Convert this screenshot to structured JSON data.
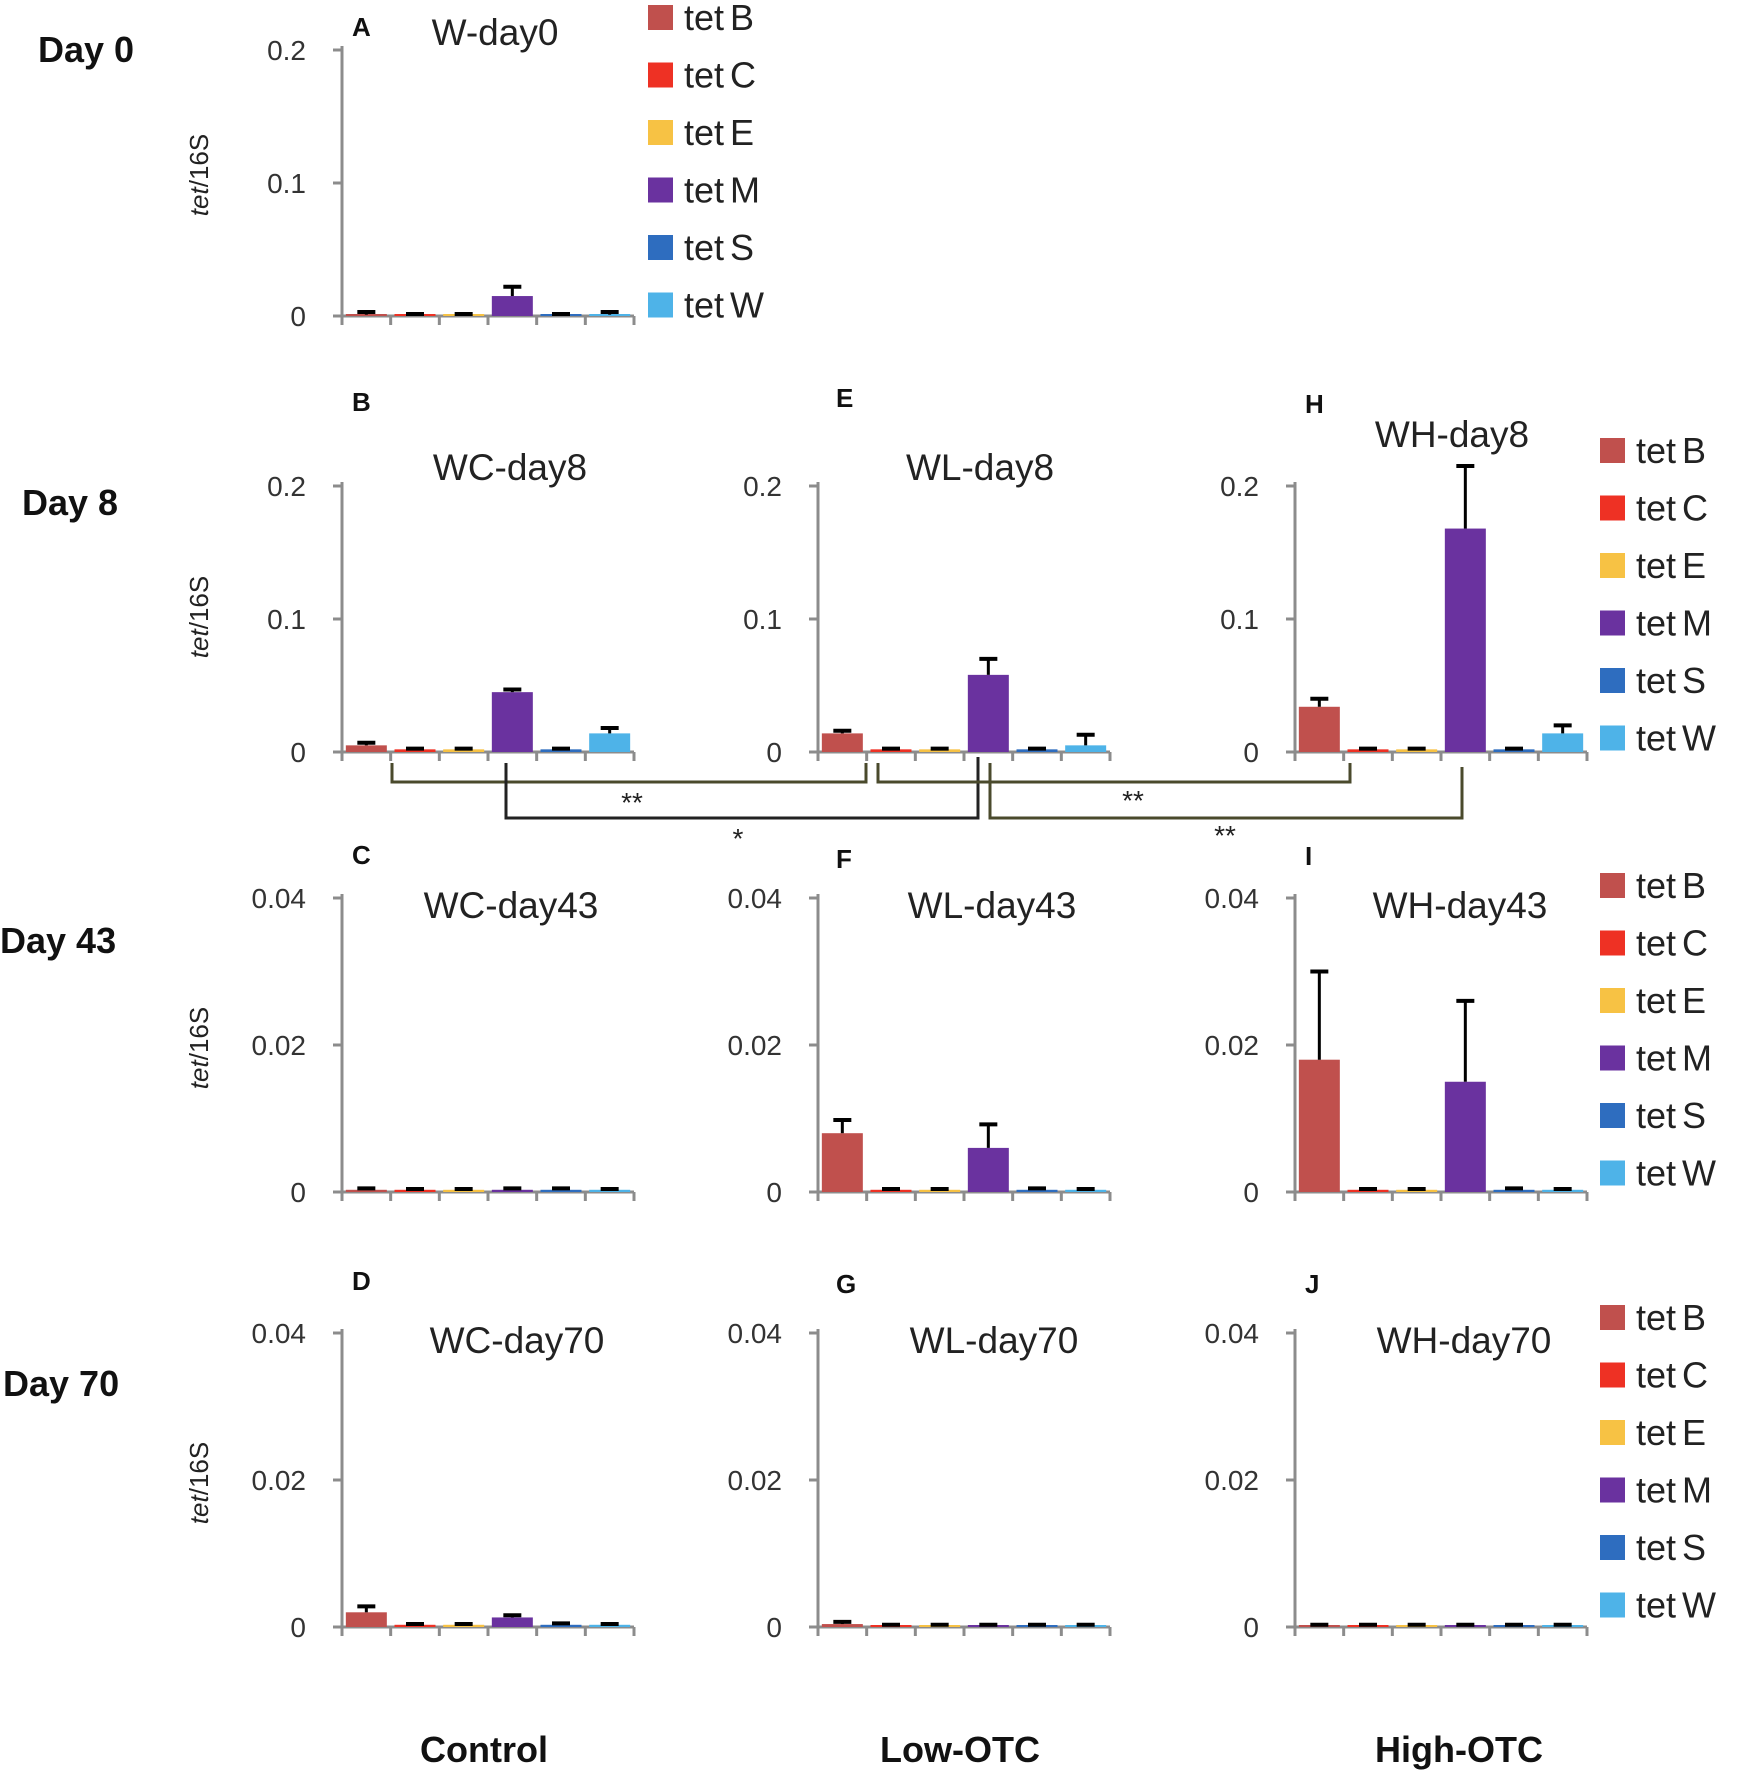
{
  "row_labels": [
    "Day 0",
    "Day 8",
    "Day 43",
    "Day 70"
  ],
  "column_labels": [
    "Control",
    "Low-OTC",
    "High-OTC"
  ],
  "y_label_italic": "tet",
  "y_label_rest": "/16S",
  "genes": [
    "tetB",
    "tetC",
    "tetE",
    "tetM",
    "tetS",
    "tetW"
  ],
  "gene_prefix": "tet",
  "gene_suffixes": [
    "B",
    "C",
    "E",
    "M",
    "S",
    "W"
  ],
  "colors": [
    "#c0504d",
    "#ee3124",
    "#f7c244",
    "#6a329f",
    "#2e6dbf",
    "#4eb3e8"
  ],
  "significance": [
    "**",
    "*",
    "**",
    "**"
  ],
  "chart_data": [
    {
      "letter": "A",
      "type": "bar",
      "title": "W-day0",
      "ylabel": "tet/16S",
      "ylim": [
        0,
        0.2
      ],
      "yticks": [
        "0",
        "0.1",
        "0.2"
      ],
      "categories": [
        "tetB",
        "tetC",
        "tetE",
        "tetM",
        "tetS",
        "tetW"
      ],
      "values": [
        0.001,
        0.001,
        0.001,
        0.015,
        0.001,
        0.001
      ],
      "errors": [
        0.002,
        0.0005,
        0.0005,
        0.007,
        0.0005,
        0.002
      ]
    },
    {
      "letter": "B",
      "type": "bar",
      "title": "WC-day8",
      "ylabel": "tet/16S",
      "ylim": [
        0,
        0.2
      ],
      "yticks": [
        "0",
        "0.1",
        "0.2"
      ],
      "categories": [
        "tetB",
        "tetC",
        "tetE",
        "tetM",
        "tetS",
        "tetW"
      ],
      "values": [
        0.005,
        0.002,
        0.002,
        0.045,
        0.002,
        0.014
      ],
      "errors": [
        0.002,
        0.0005,
        0.0005,
        0.002,
        0.0005,
        0.004
      ]
    },
    {
      "letter": "E",
      "type": "bar",
      "title": "WL-day8",
      "ylabel": "tet/16S",
      "ylim": [
        0,
        0.2
      ],
      "yticks": [
        "0",
        "0.1",
        "0.2"
      ],
      "categories": [
        "tetB",
        "tetC",
        "tetE",
        "tetM",
        "tetS",
        "tetW"
      ],
      "values": [
        0.014,
        0.002,
        0.002,
        0.058,
        0.002,
        0.005
      ],
      "errors": [
        0.002,
        0.0005,
        0.0005,
        0.012,
        0.0005,
        0.008
      ]
    },
    {
      "letter": "H",
      "type": "bar",
      "title": "WH-day8",
      "ylabel": "tet/16S",
      "ylim": [
        0,
        0.2
      ],
      "yticks": [
        "0",
        "0.1",
        "0.2"
      ],
      "categories": [
        "tetB",
        "tetC",
        "tetE",
        "tetM",
        "tetS",
        "tetW"
      ],
      "values": [
        0.034,
        0.002,
        0.002,
        0.168,
        0.002,
        0.014
      ],
      "errors": [
        0.006,
        0.0005,
        0.0005,
        0.047,
        0.0005,
        0.006
      ]
    },
    {
      "letter": "C",
      "type": "bar",
      "title": "WC-day43",
      "ylabel": "tet/16S",
      "ylim": [
        0,
        0.04
      ],
      "yticks": [
        "0",
        "0.02",
        "0.04"
      ],
      "categories": [
        "tetB",
        "tetC",
        "tetE",
        "tetM",
        "tetS",
        "tetW"
      ],
      "values": [
        0.0003,
        0.0003,
        0.0003,
        0.0003,
        0.0003,
        0.0003
      ],
      "errors": [
        0.0002,
        0.0001,
        0.0001,
        0.0002,
        0.0002,
        0.0001
      ]
    },
    {
      "letter": "F",
      "type": "bar",
      "title": "WL-day43",
      "ylabel": "tet/16S",
      "ylim": [
        0,
        0.04
      ],
      "yticks": [
        "0",
        "0.02",
        "0.04"
      ],
      "categories": [
        "tetB",
        "tetC",
        "tetE",
        "tetM",
        "tetS",
        "tetW"
      ],
      "values": [
        0.008,
        0.0003,
        0.0003,
        0.006,
        0.0003,
        0.0003
      ],
      "errors": [
        0.0018,
        0.0001,
        0.0001,
        0.0032,
        0.0002,
        0.0001
      ]
    },
    {
      "letter": "I",
      "type": "bar",
      "title": "WH-day43",
      "ylabel": "tet/16S",
      "ylim": [
        0,
        0.04
      ],
      "yticks": [
        "0",
        "0.02",
        "0.04"
      ],
      "categories": [
        "tetB",
        "tetC",
        "tetE",
        "tetM",
        "tetS",
        "tetW"
      ],
      "values": [
        0.018,
        0.0003,
        0.0003,
        0.015,
        0.0003,
        0.0003
      ],
      "errors": [
        0.012,
        0.0001,
        0.0001,
        0.011,
        0.0002,
        0.0001
      ]
    },
    {
      "letter": "D",
      "type": "bar",
      "title": "WC-day70",
      "ylabel": "tet/16S",
      "ylim": [
        0,
        0.04
      ],
      "yticks": [
        "0",
        "0.02",
        "0.04"
      ],
      "categories": [
        "tetB",
        "tetC",
        "tetE",
        "tetM",
        "tetS",
        "tetW"
      ],
      "values": [
        0.002,
        0.0003,
        0.0003,
        0.0013,
        0.0003,
        0.0003
      ],
      "errors": [
        0.0008,
        0.0001,
        0.0001,
        0.0003,
        0.0002,
        0.0001
      ]
    },
    {
      "letter": "G",
      "type": "bar",
      "title": "WL-day70",
      "ylabel": "tet/16S",
      "ylim": [
        0,
        0.04
      ],
      "yticks": [
        "0",
        "0.02",
        "0.04"
      ],
      "categories": [
        "tetB",
        "tetC",
        "tetE",
        "tetM",
        "tetS",
        "tetW"
      ],
      "values": [
        0.0004,
        0.0002,
        0.0002,
        0.0002,
        0.0002,
        0.0002
      ],
      "errors": [
        0.0003,
        0.0001,
        0.0001,
        0.0001,
        0.0001,
        0.0001
      ]
    },
    {
      "letter": "J",
      "type": "bar",
      "title": "WH-day70",
      "ylabel": "tet/16S",
      "ylim": [
        0,
        0.04
      ],
      "yticks": [
        "0",
        "0.02",
        "0.04"
      ],
      "categories": [
        "tetB",
        "tetC",
        "tetE",
        "tetM",
        "tetS",
        "tetW"
      ],
      "values": [
        0.0002,
        0.0002,
        0.0002,
        0.0002,
        0.0002,
        0.0002
      ],
      "errors": [
        0.0001,
        0.0001,
        0.0001,
        0.0001,
        0.0001,
        0.0001
      ]
    }
  ]
}
